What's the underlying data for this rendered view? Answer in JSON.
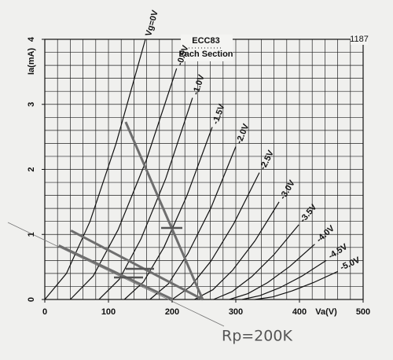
{
  "chart_data": {
    "type": "line",
    "title": "ECC83",
    "subtitle": "Each Section",
    "code": "1187",
    "ylabel": "Ia(mA)",
    "xlabel": "Va(V)",
    "annotation": "Rp=200K",
    "xlim": [
      0,
      500
    ],
    "ylim": [
      0,
      4
    ],
    "xticks": [
      0,
      100,
      200,
      300,
      400,
      500
    ],
    "yticks": [
      0,
      1,
      2,
      3,
      4
    ],
    "xgrid": [
      0,
      20,
      40,
      60,
      80,
      100,
      120,
      140,
      160,
      180,
      200,
      220,
      240,
      260,
      280,
      300,
      320,
      340,
      360,
      380,
      400,
      420,
      440,
      460,
      480,
      500
    ],
    "ygrid": [
      0,
      0.2,
      0.4,
      0.6,
      0.8,
      1,
      1.2,
      1.4,
      1.6,
      1.8,
      2,
      2.2,
      2.4,
      2.6,
      2.8,
      3,
      3.2,
      3.4,
      3.6,
      3.8,
      4
    ],
    "grid": true,
    "color": "#111111",
    "series": [
      {
        "name": "Vg=0V",
        "x": [
          0,
          34,
          71,
          112,
          158
        ],
        "values": [
          0,
          0.4,
          1.2,
          2.4,
          4
        ]
      },
      {
        "name": "-0.5V",
        "x": [
          40,
          76,
          115,
          159,
          207
        ],
        "values": [
          0,
          0.36,
          1.07,
          2.13,
          3.55
        ]
      },
      {
        "name": "-1.0V",
        "x": [
          85,
          117,
          151,
          190,
          232
        ],
        "values": [
          0,
          0.31,
          0.93,
          1.86,
          3.1
        ]
      },
      {
        "name": "-1.5V",
        "x": [
          125,
          155,
          187,
          223,
          263
        ],
        "values": [
          0,
          0.27,
          0.8,
          1.59,
          2.65
        ]
      },
      {
        "name": "-2.0V",
        "x": [
          165,
          194,
          225,
          261,
          300
        ],
        "values": [
          0,
          0.24,
          0.71,
          1.41,
          2.35
        ]
      },
      {
        "name": "-2.5V",
        "x": [
          200,
          229,
          261,
          297,
          337
        ],
        "values": [
          0,
          0.2,
          0.59,
          1.17,
          1.95
        ]
      },
      {
        "name": "-3.0V",
        "x": [
          235,
          264,
          295,
          330,
          368
        ],
        "values": [
          0,
          0.15,
          0.45,
          0.9,
          1.5
        ]
      },
      {
        "name": "-3.5V",
        "x": [
          265,
          294,
          325,
          360,
          399
        ],
        "values": [
          0,
          0.12,
          0.35,
          0.69,
          1.15
        ]
      },
      {
        "name": "-4.0V",
        "x": [
          290,
          319,
          350,
          385,
          424
        ],
        "values": [
          0,
          0.09,
          0.26,
          0.51,
          0.85
        ]
      },
      {
        "name": "-4.5V",
        "x": [
          310,
          338,
          369,
          404,
          442
        ],
        "values": [
          0,
          0.06,
          0.18,
          0.36,
          0.6
        ]
      },
      {
        "name": "-5.0V",
        "x": [
          330,
          358,
          388,
          422,
          460
        ],
        "values": [
          0,
          0.04,
          0.13,
          0.26,
          0.43
        ]
      }
    ],
    "load_lines": {
      "color": "#6e6e6e",
      "lines": [
        {
          "x": [
            127,
            248
          ],
          "values": [
            2.73,
            0
          ]
        },
        {
          "x": [
            41,
            248
          ],
          "values": [
            1.06,
            0
          ]
        },
        {
          "x": [
            22,
            201
          ],
          "values": [
            0.83,
            0
          ]
        }
      ]
    }
  }
}
